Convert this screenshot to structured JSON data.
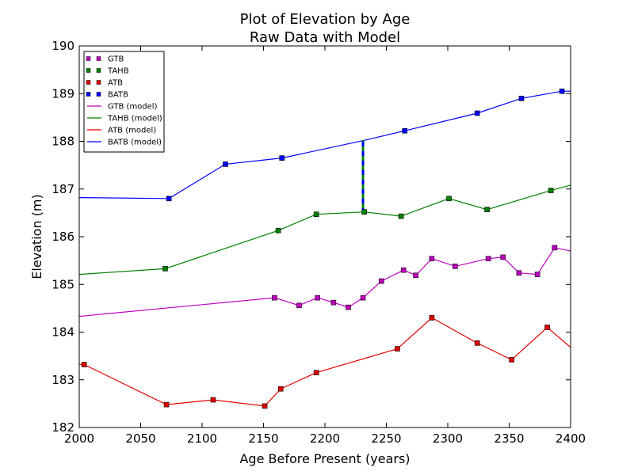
{
  "chart_data": {
    "type": "line",
    "title": "Plot of Elevation by Age",
    "subtitle": "Raw Data with Model",
    "xlabel": "Age Before Present (years)",
    "ylabel": "Elevation (m)",
    "xlim": [
      2000,
      2400
    ],
    "ylim": [
      182,
      190
    ],
    "xticks": [
      2000,
      2050,
      2100,
      2150,
      2200,
      2250,
      2300,
      2350,
      2400
    ],
    "yticks": [
      182,
      183,
      184,
      185,
      186,
      187,
      188,
      189,
      190
    ],
    "grid": false,
    "legend_position": "top-left",
    "points_series": [
      {
        "name": "GTB",
        "color": "#bf00bf",
        "x": [
          2159,
          2179,
          2194,
          2207,
          2219,
          2231,
          2246,
          2264,
          2274,
          2287,
          2306,
          2333,
          2345,
          2358,
          2373,
          2387
        ],
        "y": [
          184.72,
          184.56,
          184.72,
          184.62,
          184.52,
          184.72,
          185.07,
          185.3,
          185.19,
          185.54,
          185.38,
          185.54,
          185.57,
          185.24,
          185.21,
          185.77
        ]
      },
      {
        "name": "TAHB",
        "color": "#007f00",
        "x": [
          2070,
          2162,
          2193,
          2232,
          2262,
          2301,
          2332,
          2384
        ],
        "y": [
          185.33,
          186.13,
          186.47,
          186.52,
          186.43,
          186.8,
          186.57,
          186.97
        ]
      },
      {
        "name": "ATB",
        "color": "#e00000",
        "x": [
          2004,
          2071,
          2109,
          2151,
          2164,
          2193,
          2259,
          2287,
          2324,
          2352,
          2381
        ],
        "y": [
          183.32,
          182.48,
          182.58,
          182.45,
          182.81,
          183.15,
          183.65,
          184.3,
          183.77,
          183.42,
          184.1
        ]
      },
      {
        "name": "BATB",
        "color": "#0000ff",
        "x": [
          2073,
          2119,
          2165,
          2265,
          2324,
          2360,
          2393
        ],
        "y": [
          186.8,
          187.52,
          187.65,
          188.22,
          188.59,
          188.9,
          189.05
        ]
      }
    ],
    "model_series": [
      {
        "name": "GTB (model)",
        "color": "#bf00bf",
        "x": [
          2000,
          2159,
          2179,
          2194,
          2207,
          2219,
          2231,
          2246,
          2264,
          2274,
          2287,
          2306,
          2333,
          2345,
          2358,
          2373,
          2387,
          2400
        ],
        "y": [
          184.33,
          184.72,
          184.56,
          184.72,
          184.62,
          184.52,
          184.72,
          185.07,
          185.3,
          185.19,
          185.54,
          185.38,
          185.54,
          185.57,
          185.24,
          185.21,
          185.77,
          185.7
        ]
      },
      {
        "name": "TAHB (model)",
        "color": "#007f00",
        "x": [
          2000,
          2070,
          2162,
          2193,
          2232,
          2262,
          2301,
          2332,
          2384,
          2400
        ],
        "y": [
          185.21,
          185.33,
          186.13,
          186.47,
          186.52,
          186.43,
          186.8,
          186.57,
          186.97,
          187.08
        ]
      },
      {
        "name": "ATB (model)",
        "color": "#e00000",
        "x": [
          2000,
          2004,
          2071,
          2109,
          2151,
          2164,
          2193,
          2259,
          2287,
          2324,
          2352,
          2381,
          2400
        ],
        "y": [
          183.32,
          183.32,
          182.48,
          182.58,
          182.45,
          182.81,
          183.15,
          183.65,
          184.3,
          183.77,
          183.42,
          184.1,
          183.68
        ]
      },
      {
        "name": "BATB (model)",
        "color": "#0000ff",
        "x": [
          2000,
          2073,
          2119,
          2165,
          2232,
          2265,
          2324,
          2360,
          2393,
          2400
        ],
        "y": [
          186.82,
          186.8,
          187.52,
          187.65,
          188.02,
          188.22,
          188.59,
          188.9,
          189.05,
          189.05
        ]
      }
    ],
    "annotation_line": {
      "x": 2231,
      "y_from": 186.5,
      "y_to": 188.02,
      "colors": [
        "#007f00",
        "#0000ff"
      ]
    }
  }
}
